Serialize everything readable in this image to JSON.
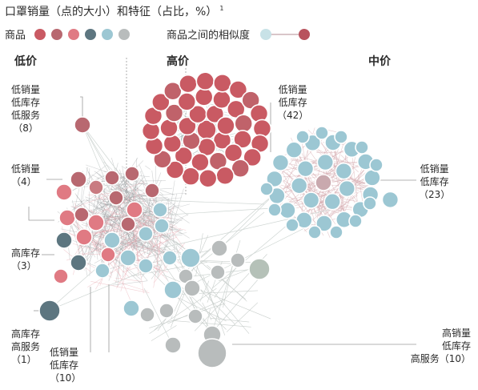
{
  "title": "口罩销量（点的大小）和特征（占比，%）",
  "title_note": "1",
  "legend": {
    "products_label": "商品",
    "products_colors": [
      "#c95a63",
      "#b86870",
      "#e07a83",
      "#5d7680",
      "#9cc7d3",
      "#b8bcbc"
    ],
    "similarity_label": "商品之间的相似度",
    "similarity_from": "#c8e2e7",
    "similarity_to": "#b8535e"
  },
  "groups": {
    "low": "低价",
    "high": "高价",
    "mid": "中价"
  },
  "annotations": {
    "a1": [
      "低销量",
      "低库存",
      "低服务",
      "（8）"
    ],
    "a2": [
      "低销量",
      "（4）"
    ],
    "a3": [
      "高库存",
      "（3）"
    ],
    "a4": [
      "高库存",
      "高服务",
      "（1）"
    ],
    "a5": [
      "低销量",
      "低库存",
      "（10）"
    ],
    "a6": [
      "低销量",
      "低库存",
      "（42）"
    ],
    "a7": [
      "低销量",
      "低库存",
      "（23）"
    ],
    "a8": [
      "高销量",
      "低库存",
      "高服务（10）"
    ]
  }
}
